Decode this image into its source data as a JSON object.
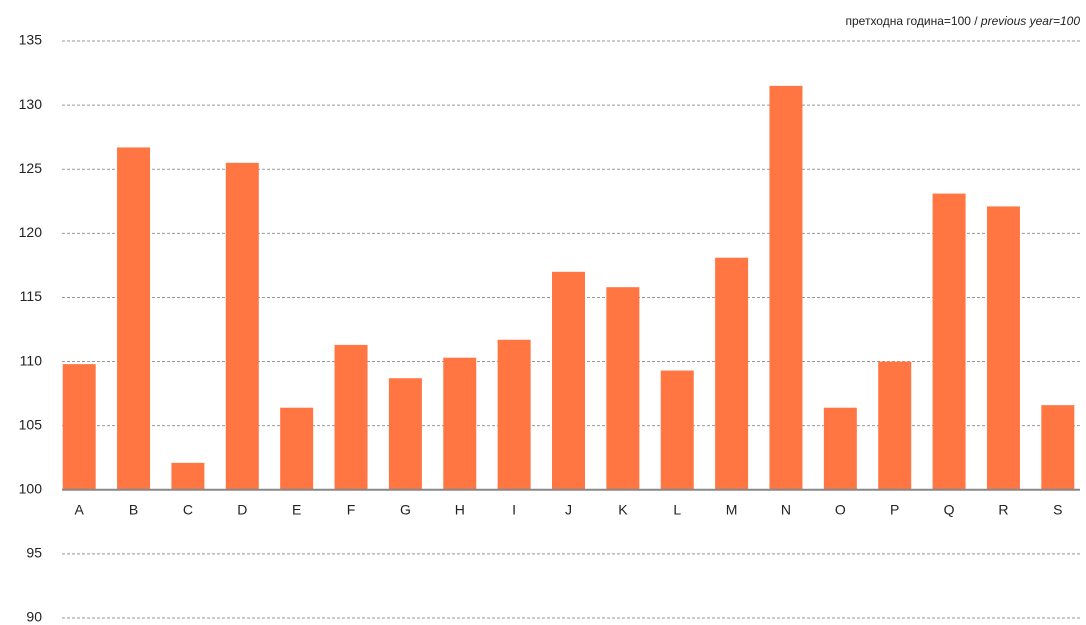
{
  "chart_data": {
    "type": "bar",
    "note": "претходна година=100 / ",
    "note_italic": "previous year=100",
    "categories": [
      "A",
      "B",
      "C",
      "D",
      "E",
      "F",
      "G",
      "H",
      "I",
      "J",
      "K",
      "L",
      "M",
      "N",
      "O",
      "P",
      "Q",
      "R",
      "S"
    ],
    "values": [
      109.8,
      126.7,
      102.1,
      125.5,
      106.4,
      111.3,
      108.7,
      110.3,
      111.7,
      117,
      115.8,
      109.3,
      118.1,
      131.5,
      106.4,
      110,
      123.1,
      122.1,
      106.6
    ],
    "color": "#ff7643",
    "baseline": 100,
    "ylim": [
      90,
      135
    ],
    "yticks": [
      90,
      95,
      100,
      105,
      110,
      115,
      120,
      125,
      130,
      135
    ],
    "grid": true
  }
}
